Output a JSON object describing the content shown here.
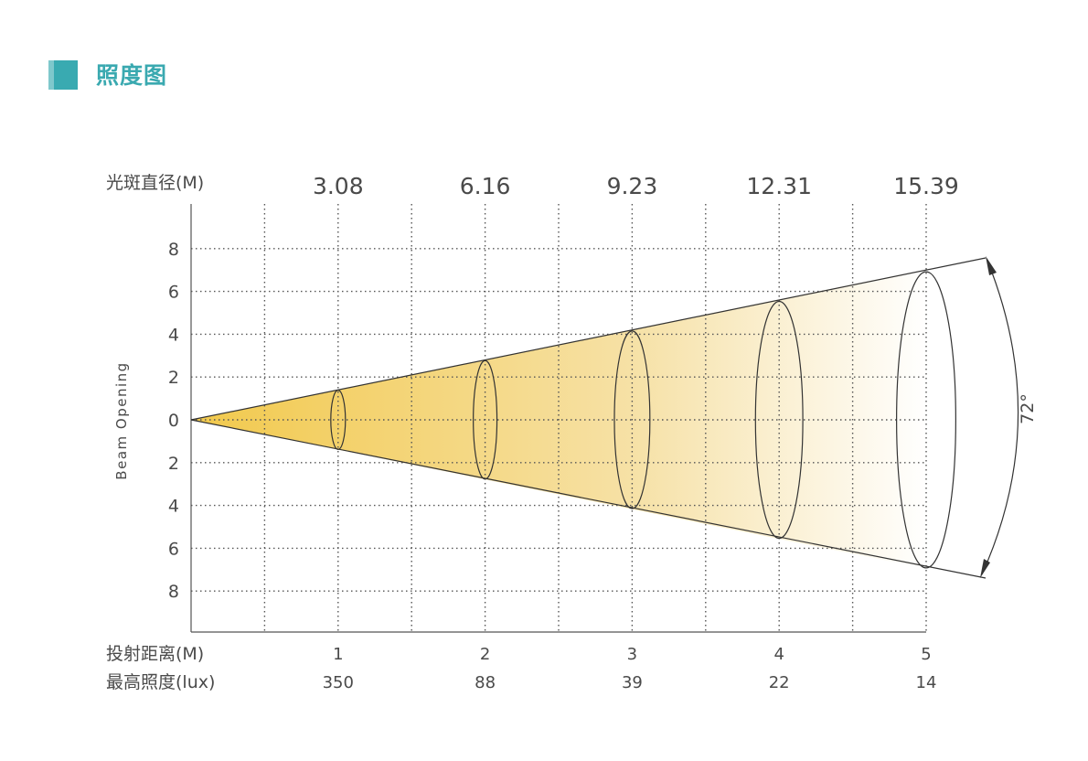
{
  "header": {
    "title": "照度图"
  },
  "colors": {
    "accent": "#3aa9b0",
    "beam_light": "#ffffff",
    "beam_dark": "#f2c94c"
  },
  "chart_data": {
    "type": "beam-diagram",
    "top_axis_label": "光斑直径(M)",
    "y_label": "Beam Opening",
    "y_ticks": [
      "8",
      "6",
      "4",
      "2",
      "0",
      "2",
      "4",
      "6",
      "8"
    ],
    "angle_label": "72°",
    "row_labels": {
      "distance": "投射距离(M)",
      "illuminance": "最高照度(lux)"
    },
    "points": [
      {
        "distance": "1",
        "diameter": "3.08",
        "illuminance": "350"
      },
      {
        "distance": "2",
        "diameter": "6.16",
        "illuminance": "88"
      },
      {
        "distance": "3",
        "diameter": "9.23",
        "illuminance": "39"
      },
      {
        "distance": "4",
        "diameter": "12.31",
        "illuminance": "22"
      },
      {
        "distance": "5",
        "diameter": "15.39",
        "illuminance": "14"
      }
    ]
  }
}
